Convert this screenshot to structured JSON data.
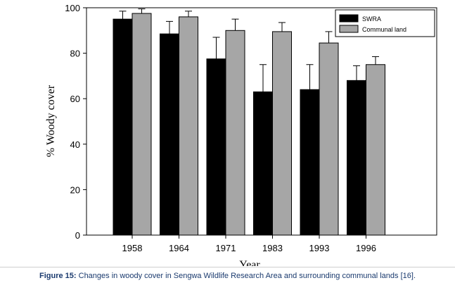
{
  "chart_data": {
    "type": "bar",
    "categories": [
      "1958",
      "1964",
      "1971",
      "1983",
      "1993",
      "1996"
    ],
    "series": [
      {
        "name": "SWRA",
        "color": "#000000",
        "values": [
          95,
          88.5,
          77.5,
          63,
          64,
          68
        ],
        "error": [
          3.5,
          5.5,
          9.5,
          12,
          11,
          6.5
        ]
      },
      {
        "name": "Communal land",
        "color": "#a6a6a6",
        "values": [
          97.5,
          96,
          90,
          89.5,
          84.5,
          75
        ],
        "error": [
          2,
          2.5,
          5,
          4,
          5,
          3.5
        ]
      }
    ],
    "xlabel": "Year",
    "ylabel": "% Woody cover",
    "ylim": [
      0,
      100
    ],
    "yticks": [
      "0",
      "20",
      "40",
      "60",
      "80",
      "100"
    ],
    "legend_position": "top-right",
    "grid": false
  },
  "caption": {
    "label": "Figure 15:",
    "text": " Changes in woody cover in Sengwa Wildlife Research Area and surrounding communal lands [16]."
  }
}
